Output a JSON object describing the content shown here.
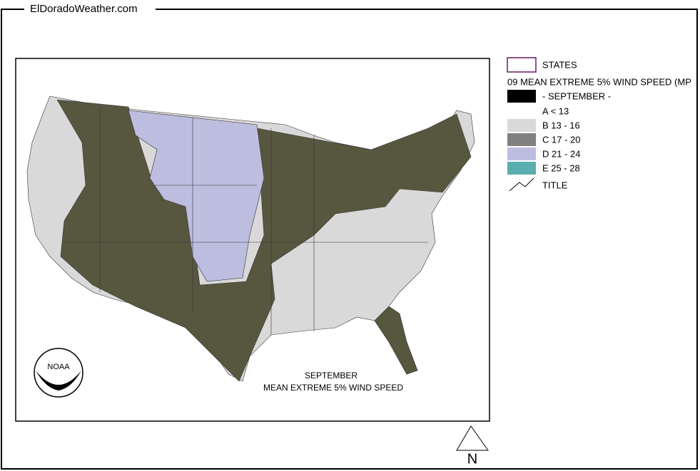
{
  "header": {
    "site": "ElDoradoWeather.com"
  },
  "legend": {
    "states": "STATES",
    "layer": "09 MEAN EXTREME 5% WIND SPEED (MP",
    "month": "- SEPTEMBER -",
    "classes": [
      "A < 13",
      "B 13 - 16",
      "C 17 - 20",
      "D 21 - 24",
      "E 25 - 28"
    ],
    "title": "TITLE"
  },
  "map": {
    "title_line1": "SEPTEMBER",
    "title_line2": "MEAN EXTREME 5% WIND SPEED",
    "logo": "NOAA",
    "north": "N"
  }
}
